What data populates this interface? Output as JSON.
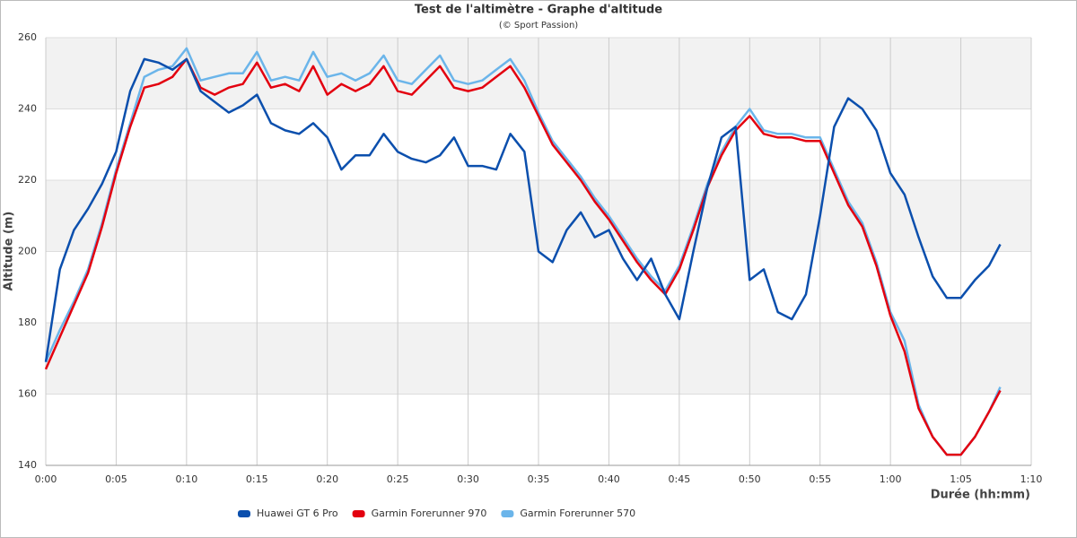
{
  "chart_data": {
    "type": "line",
    "title": "Test de l'altimètre - Graphe d'altitude",
    "subtitle": "(© Sport Passion)",
    "y_label": "Altitude (m)",
    "x_label": "Durée (hh:mm)",
    "x": [
      0,
      1,
      2,
      3,
      4,
      5,
      6,
      7,
      8,
      9,
      10,
      11,
      12,
      13,
      14,
      15,
      16,
      17,
      18,
      19,
      20,
      21,
      22,
      23,
      24,
      25,
      26,
      27,
      28,
      29,
      30,
      31,
      32,
      33,
      34,
      35,
      36,
      37,
      38,
      39,
      40,
      41,
      42,
      43,
      44,
      45,
      46,
      47,
      48,
      49,
      50,
      51,
      52,
      53,
      54,
      55,
      56,
      57,
      58,
      59,
      60,
      61,
      62,
      63,
      64,
      65,
      66,
      67,
      67.8
    ],
    "series": [
      {
        "name": "Huawei GT 6 Pro",
        "color": "#0b4fad",
        "values": [
          169,
          195,
          206,
          212,
          219,
          228,
          245,
          254,
          253,
          251,
          254,
          245,
          242,
          239,
          241,
          244,
          236,
          234,
          233,
          236,
          232,
          223,
          227,
          227,
          233,
          228,
          226,
          225,
          227,
          232,
          224,
          224,
          223,
          233,
          228,
          200,
          197,
          206,
          211,
          204,
          206,
          198,
          192,
          198,
          188,
          181,
          200,
          218,
          232,
          235,
          192,
          195,
          183,
          181,
          188,
          210,
          235,
          243,
          240,
          234,
          222,
          216,
          204,
          193,
          187,
          187,
          192,
          196,
          202
        ]
      },
      {
        "name": "Garmin Forerunner 970",
        "color": "#e3000f",
        "values": [
          167,
          176,
          185,
          194,
          207,
          222,
          235,
          246,
          247,
          249,
          254,
          246,
          244,
          246,
          247,
          253,
          246,
          247,
          245,
          252,
          244,
          247,
          245,
          247,
          252,
          245,
          244,
          248,
          252,
          246,
          245,
          246,
          249,
          252,
          246,
          238,
          230,
          225,
          220,
          214,
          209,
          203,
          197,
          192,
          188,
          195,
          206,
          218,
          227,
          234,
          238,
          233,
          232,
          232,
          231,
          231,
          222,
          213,
          207,
          196,
          182,
          172,
          156,
          148,
          143,
          143,
          148,
          155,
          161
        ]
      },
      {
        "name": "Garmin Forerunner 570",
        "color": "#6bb5ea",
        "values": [
          169,
          178,
          186,
          195,
          208,
          223,
          236,
          249,
          251,
          252,
          257,
          248,
          249,
          250,
          250,
          256,
          248,
          249,
          248,
          256,
          249,
          250,
          248,
          250,
          255,
          248,
          247,
          251,
          255,
          248,
          247,
          248,
          251,
          254,
          248,
          239,
          231,
          226,
          221,
          215,
          210,
          204,
          198,
          193,
          189,
          196,
          207,
          219,
          228,
          235,
          240,
          234,
          233,
          233,
          232,
          232,
          223,
          214,
          208,
          197,
          183,
          175,
          157,
          148,
          143,
          143,
          148,
          155,
          162
        ]
      }
    ],
    "xlim": [
      0,
      70
    ],
    "xticks": [
      {
        "value": 0,
        "label": "0:00"
      },
      {
        "value": 5,
        "label": "0:05"
      },
      {
        "value": 10,
        "label": "0:10"
      },
      {
        "value": 15,
        "label": "0:15"
      },
      {
        "value": 20,
        "label": "0:20"
      },
      {
        "value": 25,
        "label": "0:25"
      },
      {
        "value": 30,
        "label": "0:30"
      },
      {
        "value": 35,
        "label": "0:35"
      },
      {
        "value": 40,
        "label": "0:40"
      },
      {
        "value": 45,
        "label": "0:45"
      },
      {
        "value": 50,
        "label": "0:50"
      },
      {
        "value": 55,
        "label": "0:55"
      },
      {
        "value": 60,
        "label": "1:00"
      },
      {
        "value": 65,
        "label": "1:05"
      },
      {
        "value": 70,
        "label": "1:10"
      }
    ],
    "ylim": [
      140,
      260
    ],
    "yticks": [
      140,
      160,
      180,
      200,
      220,
      240,
      260
    ],
    "grid": true,
    "legend": "bottom"
  }
}
